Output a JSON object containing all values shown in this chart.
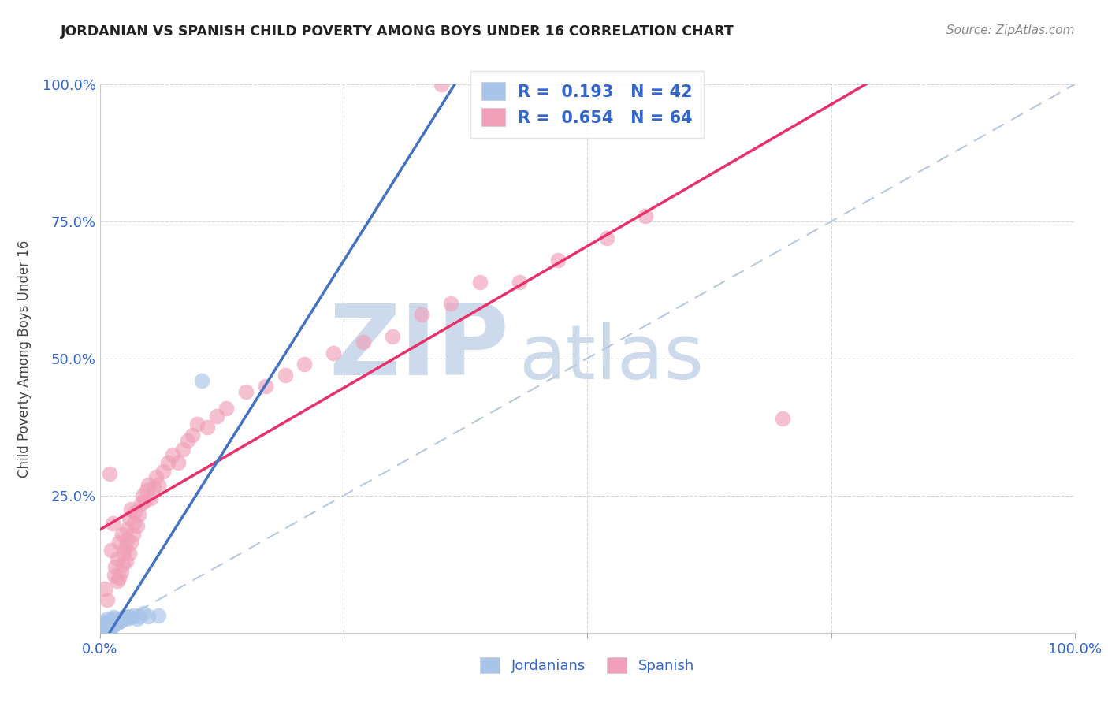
{
  "title": "JORDANIAN VS SPANISH CHILD POVERTY AMONG BOYS UNDER 16 CORRELATION CHART",
  "source": "Source: ZipAtlas.com",
  "ylabel": "Child Poverty Among Boys Under 16",
  "background_color": "#ffffff",
  "jordanian_R": 0.193,
  "jordanian_N": 42,
  "spanish_R": 0.654,
  "spanish_N": 64,
  "jordanian_color": "#a8c4e8",
  "jordanian_line_color": "#4472c4",
  "spanish_color": "#f0a0b8",
  "spanish_line_color": "#e8306a",
  "diag_color": "#b8c8dc",
  "watermark_color": "#ccdaec",
  "xlim": [
    0,
    1
  ],
  "ylim": [
    0,
    1
  ],
  "jordanian_x": [
    0.005,
    0.005,
    0.005,
    0.005,
    0.007,
    0.007,
    0.008,
    0.008,
    0.008,
    0.009,
    0.009,
    0.01,
    0.01,
    0.01,
    0.011,
    0.011,
    0.012,
    0.012,
    0.013,
    0.013,
    0.014,
    0.014,
    0.015,
    0.016,
    0.017,
    0.018,
    0.019,
    0.02,
    0.021,
    0.022,
    0.025,
    0.026,
    0.028,
    0.03,
    0.032,
    0.035,
    0.038,
    0.04,
    0.045,
    0.05,
    0.06,
    0.105
  ],
  "jordanian_y": [
    0.005,
    0.01,
    0.015,
    0.02,
    0.005,
    0.012,
    0.007,
    0.018,
    0.025,
    0.008,
    0.016,
    0.005,
    0.01,
    0.018,
    0.008,
    0.022,
    0.01,
    0.02,
    0.012,
    0.025,
    0.014,
    0.028,
    0.016,
    0.015,
    0.02,
    0.018,
    0.022,
    0.02,
    0.025,
    0.022,
    0.028,
    0.03,
    0.025,
    0.03,
    0.028,
    0.032,
    0.025,
    0.03,
    0.035,
    0.03,
    0.032,
    0.46
  ],
  "spanish_x": [
    0.005,
    0.008,
    0.01,
    0.012,
    0.013,
    0.015,
    0.016,
    0.018,
    0.018,
    0.02,
    0.02,
    0.022,
    0.023,
    0.024,
    0.025,
    0.026,
    0.027,
    0.028,
    0.028,
    0.03,
    0.03,
    0.032,
    0.032,
    0.034,
    0.035,
    0.036,
    0.038,
    0.04,
    0.042,
    0.044,
    0.046,
    0.048,
    0.05,
    0.052,
    0.055,
    0.058,
    0.06,
    0.065,
    0.07,
    0.075,
    0.08,
    0.085,
    0.09,
    0.095,
    0.1,
    0.11,
    0.12,
    0.13,
    0.15,
    0.17,
    0.19,
    0.21,
    0.24,
    0.27,
    0.3,
    0.33,
    0.36,
    0.39,
    0.43,
    0.47,
    0.52,
    0.56,
    0.7,
    0.35
  ],
  "spanish_y": [
    0.08,
    0.06,
    0.29,
    0.15,
    0.2,
    0.105,
    0.12,
    0.095,
    0.135,
    0.1,
    0.165,
    0.11,
    0.18,
    0.125,
    0.145,
    0.155,
    0.13,
    0.17,
    0.19,
    0.145,
    0.21,
    0.165,
    0.225,
    0.18,
    0.2,
    0.22,
    0.195,
    0.215,
    0.235,
    0.25,
    0.24,
    0.26,
    0.27,
    0.245,
    0.265,
    0.285,
    0.27,
    0.295,
    0.31,
    0.325,
    0.31,
    0.335,
    0.35,
    0.36,
    0.38,
    0.375,
    0.395,
    0.41,
    0.44,
    0.45,
    0.47,
    0.49,
    0.51,
    0.53,
    0.54,
    0.58,
    0.6,
    0.64,
    0.64,
    0.68,
    0.72,
    0.76,
    0.39,
    1.0
  ]
}
